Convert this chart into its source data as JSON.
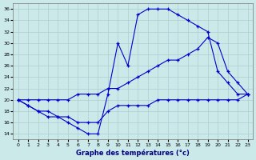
{
  "xlabel": "Graphe des températures (°c)",
  "xlim": [
    -0.5,
    23.5
  ],
  "ylim": [
    13,
    37
  ],
  "yticks": [
    14,
    16,
    18,
    20,
    22,
    24,
    26,
    28,
    30,
    32,
    34,
    36
  ],
  "xticks": [
    0,
    1,
    2,
    3,
    4,
    5,
    6,
    7,
    8,
    9,
    10,
    11,
    12,
    13,
    14,
    15,
    16,
    17,
    18,
    19,
    20,
    21,
    22,
    23
  ],
  "bg_color": "#cce9e9",
  "line_color": "#0000cc",
  "grid_color": "#aacfcf",
  "line1_x": [
    0,
    1,
    2,
    3,
    4,
    5,
    6,
    7,
    8,
    9,
    10,
    11,
    12,
    13,
    14,
    15,
    16,
    17,
    18,
    19,
    20,
    21,
    22,
    23
  ],
  "line1_y": [
    20,
    19,
    18,
    17,
    17,
    16,
    15,
    14,
    14,
    21,
    30,
    26,
    35,
    36,
    36,
    36,
    35,
    34,
    33,
    32,
    25,
    23,
    21,
    21
  ],
  "line2_x": [
    0,
    1,
    2,
    3,
    4,
    5,
    6,
    7,
    8,
    9,
    10,
    11,
    12,
    13,
    14,
    15,
    16,
    17,
    18,
    19,
    20,
    21,
    22,
    23
  ],
  "line2_y": [
    20,
    20,
    20,
    20,
    20,
    20,
    21,
    21,
    21,
    22,
    22,
    23,
    24,
    25,
    26,
    27,
    27,
    28,
    29,
    31,
    30,
    25,
    23,
    21
  ],
  "line3_x": [
    0,
    1,
    2,
    3,
    4,
    5,
    6,
    7,
    8,
    9,
    10,
    11,
    12,
    13,
    14,
    15,
    16,
    17,
    18,
    19,
    20,
    21,
    22,
    23
  ],
  "line3_y": [
    20,
    19,
    18,
    18,
    17,
    17,
    16,
    16,
    16,
    18,
    19,
    19,
    19,
    19,
    20,
    20,
    20,
    20,
    20,
    20,
    20,
    20,
    20,
    21
  ]
}
